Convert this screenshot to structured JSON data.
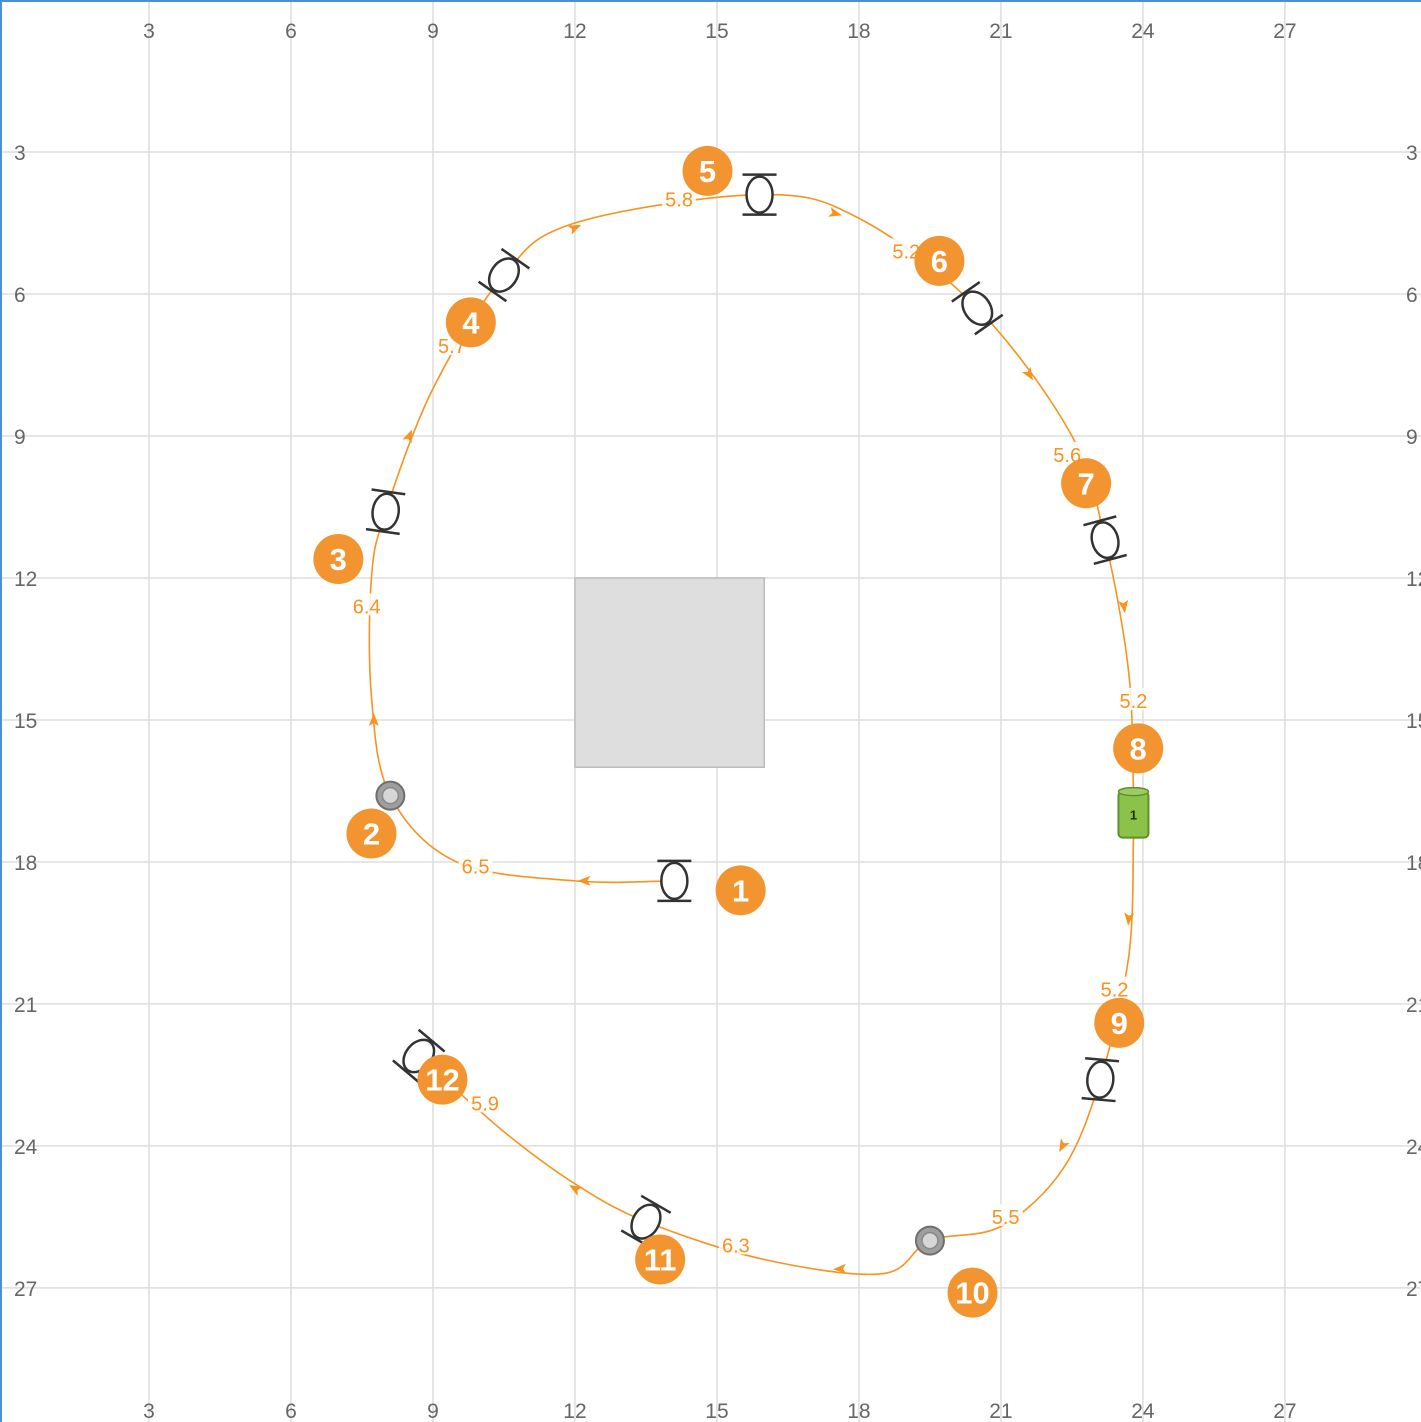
{
  "grid": {
    "x_ticks": [
      3,
      6,
      9,
      12,
      15,
      18,
      21,
      24,
      27
    ],
    "y_ticks": [
      3,
      6,
      9,
      12,
      15,
      18,
      21,
      24,
      27
    ],
    "line_color": "#dddddd",
    "text_color": "#666666"
  },
  "colors": {
    "path": "#f7931e",
    "marker_fill": "#f29430",
    "marker_text": "#ffffff",
    "obstacle_fill": "#dedede",
    "obstacle_stroke": "#bdbdbd",
    "gate_stroke": "#333333",
    "pylon_fill": "#9e9e9e",
    "station_fill": "#8bc34a"
  },
  "obstacle": {
    "x1": 12,
    "y1": 12,
    "x2": 16,
    "y2": 16
  },
  "markers": [
    {
      "label": "1",
      "x": 15.5,
      "y": 18.6
    },
    {
      "label": "2",
      "x": 7.7,
      "y": 17.4
    },
    {
      "label": "3",
      "x": 7.0,
      "y": 11.6
    },
    {
      "label": "4",
      "x": 9.8,
      "y": 6.6
    },
    {
      "label": "5",
      "x": 14.8,
      "y": 3.4
    },
    {
      "label": "6",
      "x": 19.7,
      "y": 5.3
    },
    {
      "label": "7",
      "x": 22.8,
      "y": 10.0
    },
    {
      "label": "8",
      "x": 23.9,
      "y": 15.6
    },
    {
      "label": "9",
      "x": 23.5,
      "y": 21.4
    },
    {
      "label": "10",
      "x": 20.4,
      "y": 27.1
    },
    {
      "label": "11",
      "x": 13.8,
      "y": 26.4
    },
    {
      "label": "12",
      "x": 9.2,
      "y": 22.6
    }
  ],
  "gates": [
    {
      "name": "gate-1",
      "x": 14.1,
      "y": 18.4,
      "angle": 0
    },
    {
      "name": "gate-3",
      "x": 8.0,
      "y": 10.6,
      "angle": 8
    },
    {
      "name": "gate-4",
      "x": 10.5,
      "y": 5.6,
      "angle": 35
    },
    {
      "name": "gate-5",
      "x": 15.9,
      "y": 3.9,
      "angle": 0
    },
    {
      "name": "gate-6",
      "x": 20.5,
      "y": 6.3,
      "angle": -35
    },
    {
      "name": "gate-7",
      "x": 23.2,
      "y": 11.2,
      "angle": -15
    },
    {
      "name": "gate-9",
      "x": 23.1,
      "y": 22.6,
      "angle": 5
    },
    {
      "name": "gate-11",
      "x": 13.5,
      "y": 25.6,
      "angle": 30
    },
    {
      "name": "gate-12",
      "x": 8.7,
      "y": 22.1,
      "angle": 40
    }
  ],
  "pylons": [
    {
      "name": "pylon-2",
      "x": 8.1,
      "y": 16.6
    },
    {
      "name": "pylon-10",
      "x": 19.5,
      "y": 26.0
    }
  ],
  "stations": [
    {
      "label": "1",
      "x": 23.8,
      "y": 17.0
    }
  ],
  "path_segments": [
    {
      "points": [
        [
          14.1,
          18.4
        ],
        [
          12.0,
          18.4
        ],
        [
          9.5,
          18.0
        ],
        [
          8.1,
          16.6
        ],
        [
          7.7,
          14.5
        ],
        [
          7.7,
          12.0
        ],
        [
          8.0,
          10.6
        ],
        [
          9.0,
          8.0
        ],
        [
          10.5,
          5.6
        ],
        [
          12.0,
          4.5
        ],
        [
          15.9,
          3.9
        ],
        [
          18.0,
          4.4
        ],
        [
          20.5,
          6.3
        ],
        [
          22.5,
          9.0
        ],
        [
          23.2,
          11.2
        ],
        [
          23.7,
          14.0
        ],
        [
          23.8,
          16.5
        ]
      ]
    },
    {
      "points": [
        [
          23.8,
          17.5
        ],
        [
          23.7,
          20.0
        ],
        [
          23.1,
          22.6
        ],
        [
          22.3,
          24.5
        ],
        [
          21.0,
          25.7
        ],
        [
          19.5,
          26.0
        ],
        [
          18.5,
          26.7
        ],
        [
          16.0,
          26.4
        ],
        [
          13.5,
          25.6
        ],
        [
          12.0,
          24.8
        ],
        [
          10.5,
          23.7
        ],
        [
          8.7,
          22.1
        ]
      ]
    }
  ],
  "arrows": [
    {
      "x": 12.2,
      "y": 18.4,
      "angle": 180
    },
    {
      "x": 7.75,
      "y": 15.0,
      "angle": -90
    },
    {
      "x": 8.5,
      "y": 9.0,
      "angle": -68
    },
    {
      "x": 12.0,
      "y": 4.6,
      "angle": -25
    },
    {
      "x": 17.5,
      "y": 4.3,
      "angle": 15
    },
    {
      "x": 21.6,
      "y": 7.7,
      "angle": 58
    },
    {
      "x": 23.6,
      "y": 12.6,
      "angle": 82
    },
    {
      "x": 23.7,
      "y": 19.2,
      "angle": 95
    },
    {
      "x": 22.3,
      "y": 24.0,
      "angle": 118
    },
    {
      "x": 17.6,
      "y": 26.6,
      "angle": 178
    },
    {
      "x": 12.0,
      "y": 24.9,
      "angle": -150
    }
  ],
  "segment_labels": [
    {
      "text": "6.5",
      "x": 9.9,
      "y": 18.1
    },
    {
      "text": "6.4",
      "x": 7.6,
      "y": 12.6
    },
    {
      "text": "5.7",
      "x": 9.4,
      "y": 7.1
    },
    {
      "text": "5.8",
      "x": 14.2,
      "y": 4.0
    },
    {
      "text": "5.2",
      "x": 19.0,
      "y": 5.1
    },
    {
      "text": "5.6",
      "x": 22.4,
      "y": 9.4
    },
    {
      "text": "5.2",
      "x": 23.8,
      "y": 14.6
    },
    {
      "text": "5.2",
      "x": 23.4,
      "y": 20.7
    },
    {
      "text": "5.5",
      "x": 21.1,
      "y": 25.5
    },
    {
      "text": "6.3",
      "x": 15.4,
      "y": 26.1
    },
    {
      "text": "5.9",
      "x": 10.1,
      "y": 23.1
    }
  ]
}
